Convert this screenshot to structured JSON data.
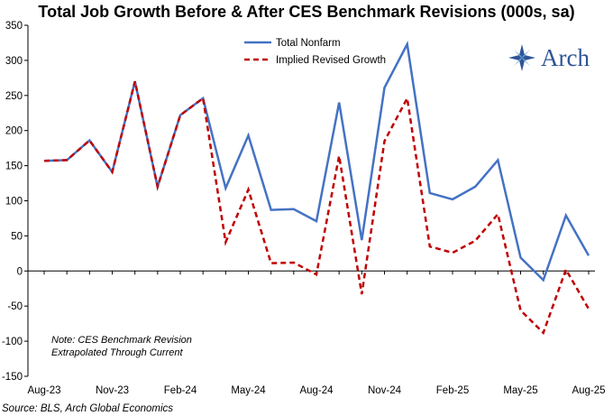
{
  "chart_data": {
    "type": "line",
    "title": "Total Job Growth Before & After CES Benchmark Revisions (000s, sa)",
    "x": [
      "Aug-23",
      "Sep-23",
      "Oct-23",
      "Nov-23",
      "Dec-23",
      "Jan-24",
      "Feb-24",
      "Mar-24",
      "Apr-24",
      "May-24",
      "Jun-24",
      "Jul-24",
      "Aug-24",
      "Sep-24",
      "Oct-24",
      "Nov-24",
      "Dec-24",
      "Jan-25",
      "Feb-25",
      "Mar-25",
      "Apr-25",
      "May-25",
      "Jun-25",
      "Jul-25",
      "Aug-25"
    ],
    "x_tick_labels": [
      "Aug-23",
      "Nov-23",
      "Feb-24",
      "May-24",
      "Aug-24",
      "Nov-24",
      "Feb-25",
      "May-25",
      "Aug-25"
    ],
    "y_ticks": [
      350,
      300,
      250,
      200,
      150,
      100,
      50,
      0,
      -50,
      -100,
      -150
    ],
    "ylim": [
      -150,
      350
    ],
    "series": [
      {
        "name": "Total Nonfarm",
        "color": "#4472c4",
        "style": "solid",
        "values": [
          157,
          158,
          186,
          141,
          270,
          120,
          222,
          246,
          118,
          193,
          87,
          88,
          71,
          240,
          44,
          261,
          323,
          111,
          102,
          120,
          158,
          19,
          -13,
          79,
          22
        ]
      },
      {
        "name": "Implied Revised Growth",
        "color": "#c00000",
        "style": "dashed",
        "values": [
          157,
          158,
          186,
          141,
          270,
          120,
          222,
          246,
          41,
          116,
          11,
          12,
          -5,
          164,
          -33,
          185,
          246,
          35,
          26,
          43,
          81,
          -56,
          -88,
          2,
          -54
        ]
      }
    ],
    "legend_position": "top-center",
    "grid": false,
    "note_lines": [
      "Note: CES Benchmark Revision",
      "Extrapolated Through Current"
    ]
  },
  "source": "Source: BLS, Arch Global Economics",
  "logo": {
    "text": "Arch",
    "color": "#2e5597"
  }
}
